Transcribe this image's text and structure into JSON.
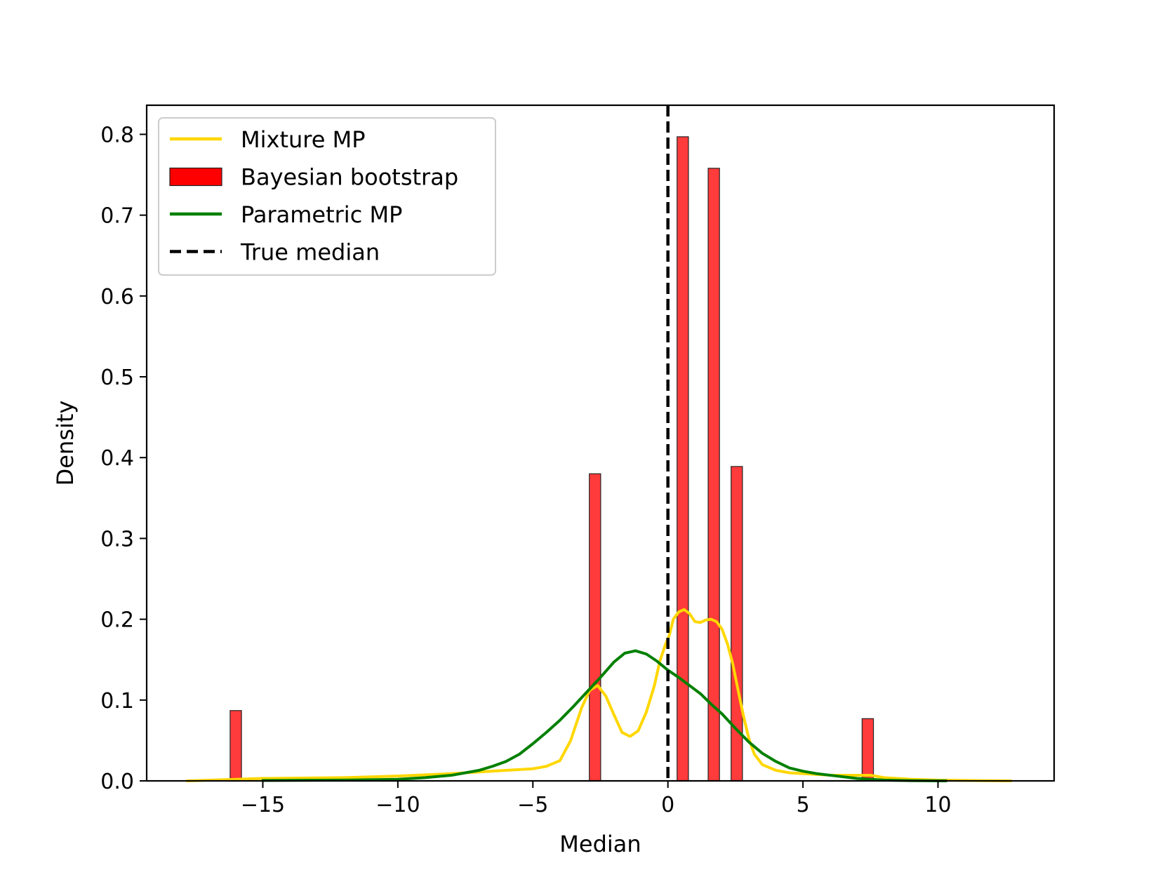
{
  "chart_data": {
    "type": "bar",
    "xlabel": "Median",
    "ylabel": "Density",
    "xlim": [
      -19.3,
      14.3
    ],
    "ylim": [
      0,
      0.836
    ],
    "xticks": [
      -15,
      -10,
      -5,
      0,
      5,
      10
    ],
    "xtick_labels": [
      "−15",
      "−10",
      "−5",
      "0",
      "5",
      "10"
    ],
    "yticks": [
      0.0,
      0.1,
      0.2,
      0.3,
      0.4,
      0.5,
      0.6,
      0.7,
      0.8
    ],
    "ytick_labels": [
      "0.0",
      "0.1",
      "0.2",
      "0.3",
      "0.4",
      "0.5",
      "0.6",
      "0.7",
      "0.8"
    ],
    "grid": false,
    "legend_position": "top-left",
    "colors": {
      "mixture": "#FFD700",
      "bootstrap_fill": "#FF3B3B",
      "bootstrap_edge": "#222222",
      "parametric": "#008000",
      "true_median": "#000000"
    },
    "legend": [
      {
        "label": "Mixture MP",
        "kind": "line",
        "color": "#FFD700",
        "dash": false
      },
      {
        "label": "Bayesian bootstrap",
        "kind": "patch",
        "color": "#FF0000"
      },
      {
        "label": "Parametric MP",
        "kind": "line",
        "color": "#008000",
        "dash": false
      },
      {
        "label": "True median",
        "kind": "line",
        "color": "#000000",
        "dash": true
      }
    ],
    "histogram": {
      "name": "Bayesian bootstrap",
      "bin_width": 0.42,
      "bins": [
        {
          "x": -16.0,
          "value": 0.087
        },
        {
          "x": -2.7,
          "value": 0.38
        },
        {
          "x": 0.55,
          "value": 0.797
        },
        {
          "x": 1.7,
          "value": 0.758
        },
        {
          "x": 2.55,
          "value": 0.389
        },
        {
          "x": 7.4,
          "value": 0.077
        }
      ]
    },
    "true_median": 0,
    "series": [
      {
        "name": "Mixture MP",
        "type": "line",
        "x": [
          -17.8,
          -15,
          -12,
          -10,
          -8,
          -6,
          -5,
          -4.5,
          -4,
          -3.6,
          -3.2,
          -2.9,
          -2.6,
          -2.3,
          -2.0,
          -1.7,
          -1.4,
          -1.1,
          -0.8,
          -0.5,
          -0.3,
          -0.1,
          0.05,
          0.2,
          0.4,
          0.6,
          0.8,
          1.0,
          1.2,
          1.4,
          1.6,
          1.8,
          2.0,
          2.2,
          2.4,
          2.6,
          2.8,
          3.0,
          3.2,
          3.5,
          4.0,
          4.5,
          5,
          6,
          7,
          7.5,
          8,
          9,
          10,
          11,
          12.7
        ],
        "y": [
          0.0,
          0.003,
          0.004,
          0.006,
          0.009,
          0.013,
          0.015,
          0.018,
          0.025,
          0.05,
          0.09,
          0.112,
          0.118,
          0.105,
          0.082,
          0.06,
          0.055,
          0.062,
          0.085,
          0.118,
          0.148,
          0.168,
          0.18,
          0.2,
          0.209,
          0.212,
          0.207,
          0.197,
          0.196,
          0.199,
          0.2,
          0.197,
          0.188,
          0.17,
          0.145,
          0.112,
          0.08,
          0.052,
          0.033,
          0.02,
          0.013,
          0.01,
          0.009,
          0.007,
          0.007,
          0.007,
          0.004,
          0.002,
          0.001,
          0.0005,
          0.0
        ]
      },
      {
        "name": "Parametric MP",
        "type": "line",
        "x": [
          -15,
          -12,
          -10,
          -9,
          -8,
          -7,
          -6.5,
          -6,
          -5.5,
          -5,
          -4.5,
          -4,
          -3.5,
          -3,
          -2.5,
          -2,
          -1.6,
          -1.2,
          -0.8,
          -0.4,
          0,
          0.4,
          0.8,
          1.2,
          1.6,
          2,
          2.5,
          3,
          3.5,
          4,
          4.5,
          5,
          5.5,
          6,
          7,
          8,
          9,
          10.3
        ],
        "y": [
          0.0005,
          0.001,
          0.002,
          0.004,
          0.007,
          0.013,
          0.018,
          0.024,
          0.033,
          0.046,
          0.06,
          0.075,
          0.092,
          0.11,
          0.128,
          0.147,
          0.158,
          0.161,
          0.157,
          0.148,
          0.137,
          0.128,
          0.118,
          0.108,
          0.095,
          0.083,
          0.065,
          0.048,
          0.034,
          0.024,
          0.016,
          0.012,
          0.009,
          0.007,
          0.003,
          0.001,
          0.0003,
          0.0
        ]
      }
    ]
  }
}
